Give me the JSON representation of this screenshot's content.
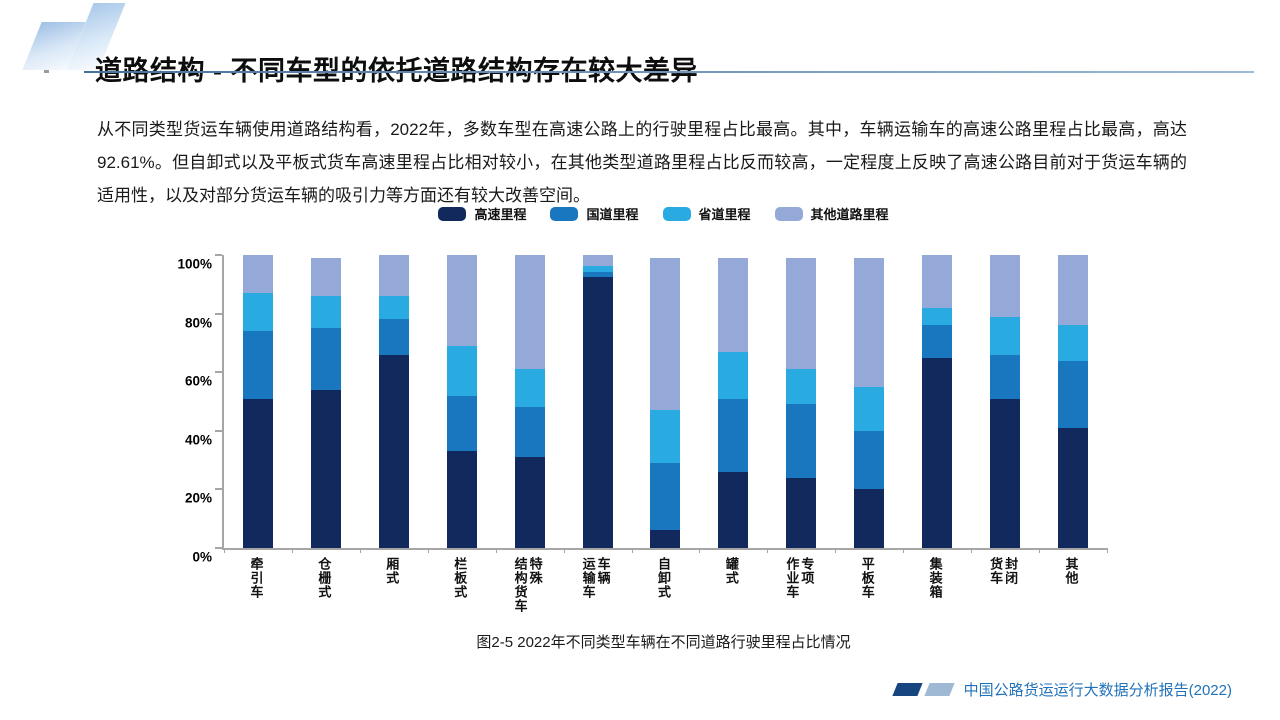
{
  "slide": {
    "title": "道路结构 - 不同车型的依托道路结构存在较大差异",
    "body": "从不同类型货运车辆使用道路结构看，2022年，多数车型在高速公路上的行驶里程占比最高。其中，车辆运输车的高速公路里程占比最高，高达 92.61%。但自卸式以及平板式货车高速里程占比相对较小，在其他类型道路里程占比反而较高，一定程度上反映了高速公路目前对于货运车辆的适用性，以及对部分货运车辆的吸引力等方面还有较大改善空间。",
    "caption": "图2-5 2022年不同类型车辆在不同道路行驶里程占比情况",
    "footer_text": "中国公路货运运行大数据分析报告(2022)"
  },
  "colors": {
    "highway": "#12295e",
    "national_road": "#1877be",
    "provincial_road": "#29abe2",
    "other_road": "#94a9d8",
    "axis": "#a6a6a6",
    "accent_blue": "#2272b9"
  },
  "chart_data": {
    "type": "bar",
    "stacked": true,
    "title": "图2-5 2022年不同类型车辆在不同道路行驶里程占比情况",
    "xlabel": "",
    "ylabel": "",
    "ylim": [
      0,
      100
    ],
    "grid": false,
    "legend_position": "top",
    "y_ticks": [
      "0%",
      "20%",
      "40%",
      "60%",
      "80%",
      "100%"
    ],
    "categories": [
      "牵引车",
      "仓栅式",
      "厢式",
      "栏板式",
      "特殊\n结构货车",
      "车辆\n运输车",
      "自卸式",
      "罐式",
      "专项\n作业车",
      "平板车",
      "集装箱",
      "封闭\n货车",
      "其他"
    ],
    "series": [
      {
        "name": "高速里程",
        "color": "#12295e",
        "values": [
          51,
          54,
          66,
          33,
          31,
          92.61,
          6,
          26,
          24,
          20,
          65,
          51,
          41
        ]
      },
      {
        "name": "国道里程",
        "color": "#1877be",
        "values": [
          23,
          21,
          12,
          19,
          17,
          1.5,
          23,
          25,
          25,
          20,
          11,
          15,
          23
        ]
      },
      {
        "name": "省道里程",
        "color": "#29abe2",
        "values": [
          13,
          11,
          8,
          17,
          13,
          2,
          18,
          16,
          12,
          15,
          6,
          13,
          12
        ]
      },
      {
        "name": "其他道路里程",
        "color": "#94a9d8",
        "values": [
          13,
          13,
          14,
          31,
          39,
          3.89,
          52,
          32,
          38,
          44,
          18,
          21,
          24
        ]
      }
    ]
  }
}
